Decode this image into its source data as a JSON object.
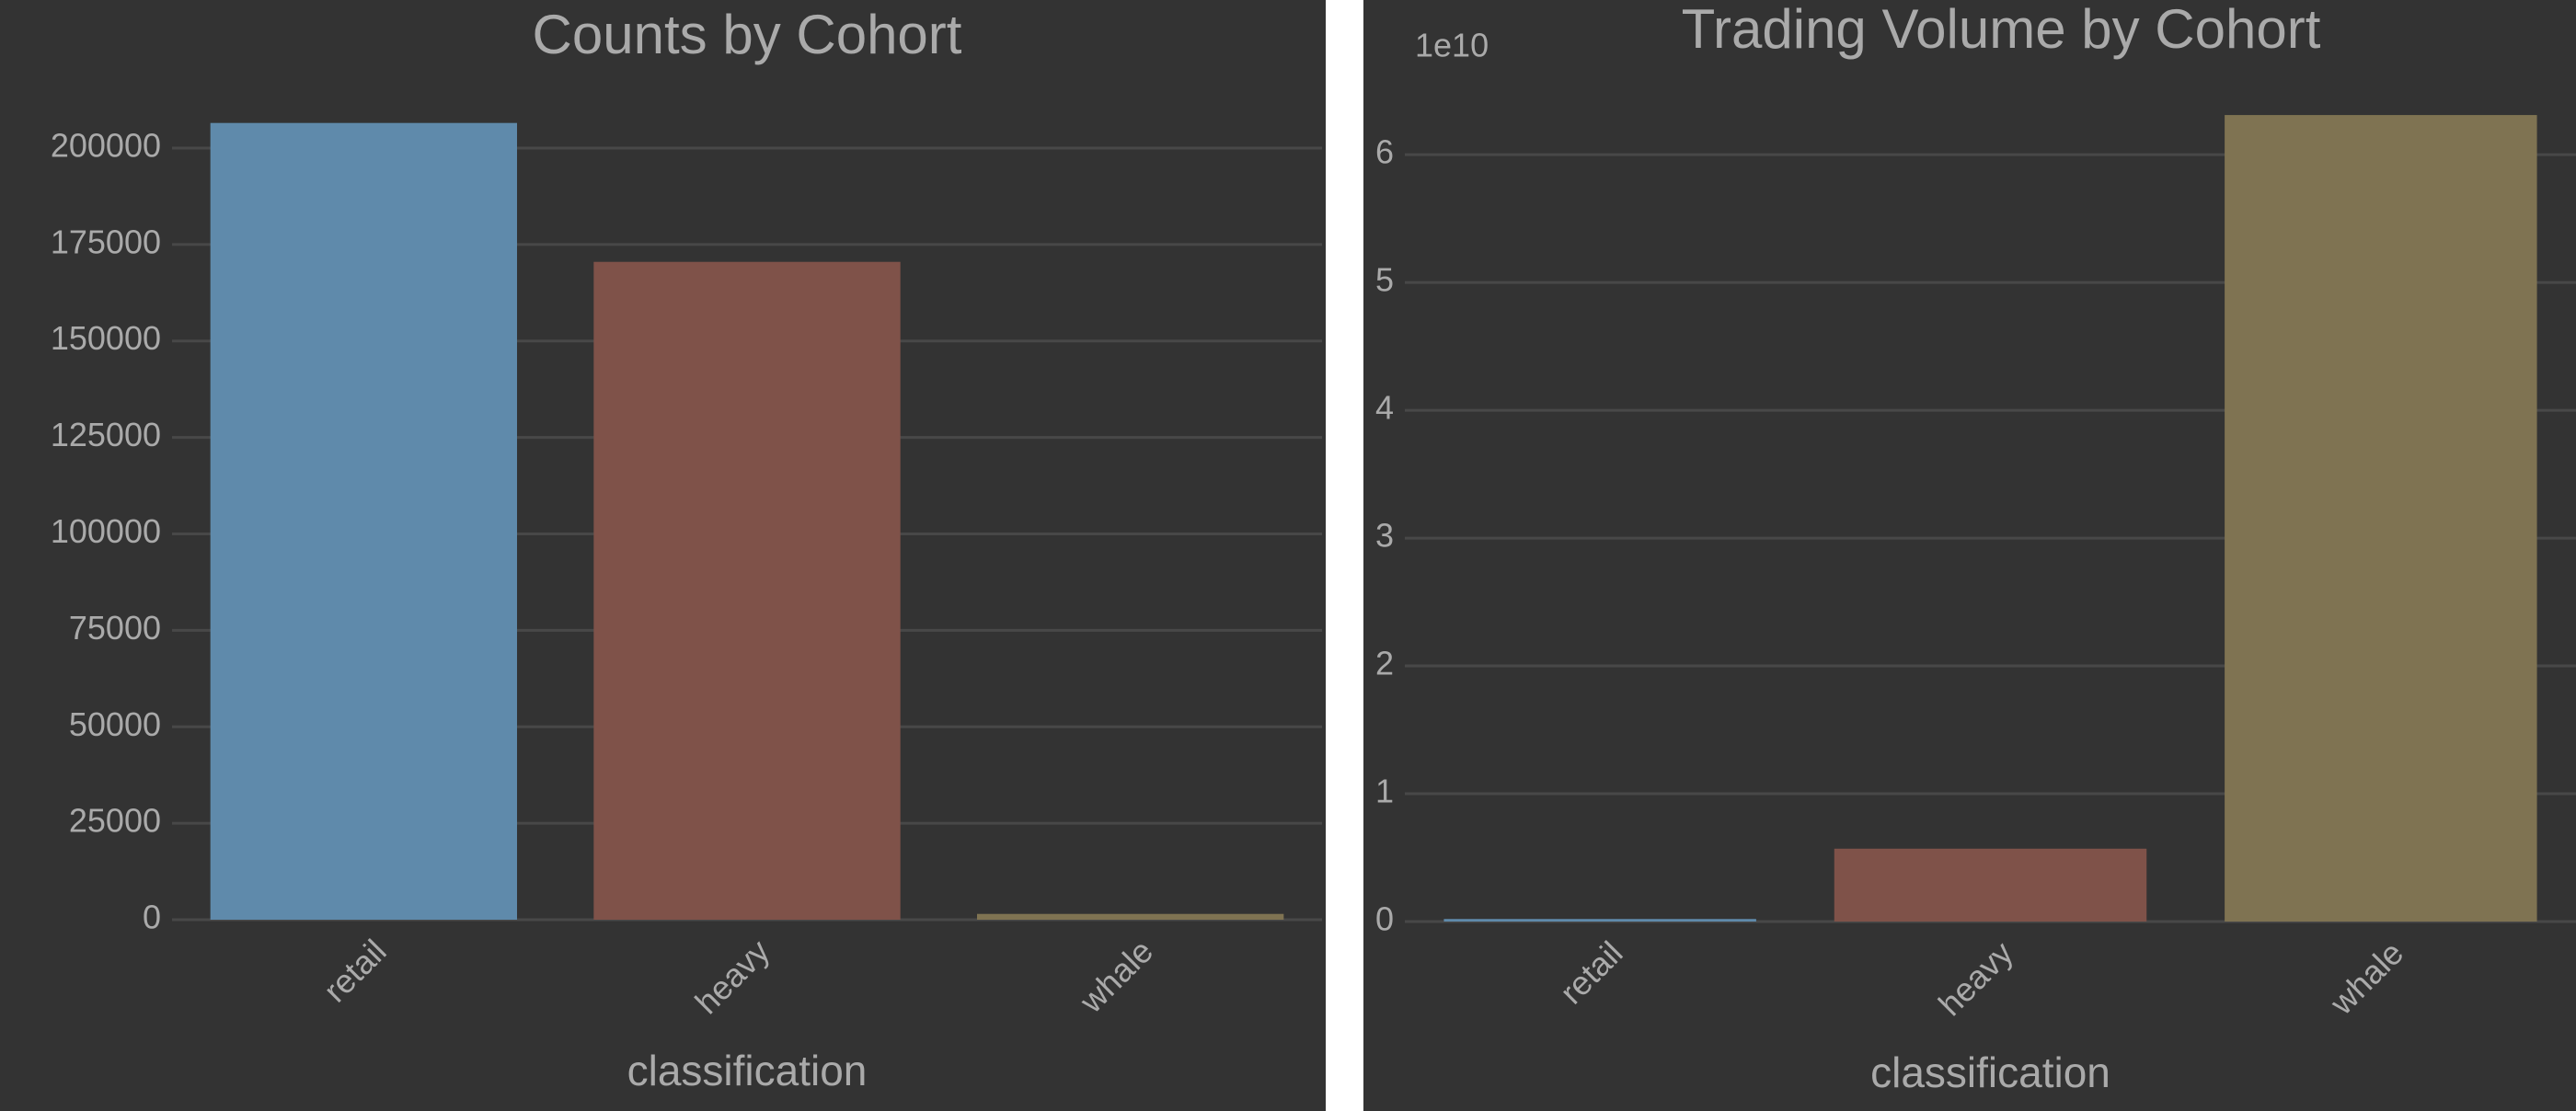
{
  "chart_data": [
    {
      "type": "bar",
      "title": "Counts by Cohort",
      "x_label": "classification",
      "categories": [
        "retail",
        "heavy",
        "whale"
      ],
      "values": [
        206500,
        170500,
        1500
      ],
      "colors": [
        "#5f8aab",
        "#7f5249",
        "#7f7352"
      ],
      "ylim": [
        0,
        210000
      ],
      "yticks": [
        0,
        25000,
        50000,
        75000,
        100000,
        125000,
        150000,
        175000,
        200000
      ],
      "grid": true
    },
    {
      "type": "bar",
      "title": "Trading Volume by Cohort",
      "x_label": "classification",
      "offset_label": "1e10",
      "categories": [
        "retail",
        "heavy",
        "whale"
      ],
      "values": [
        0.02,
        0.57,
        6.31
      ],
      "colors": [
        "#5f8aab",
        "#7f5249",
        "#7f7352"
      ],
      "ylim": [
        0,
        6.62
      ],
      "yticks": [
        0,
        1,
        2,
        3,
        4,
        5,
        6
      ],
      "grid": true
    }
  ]
}
